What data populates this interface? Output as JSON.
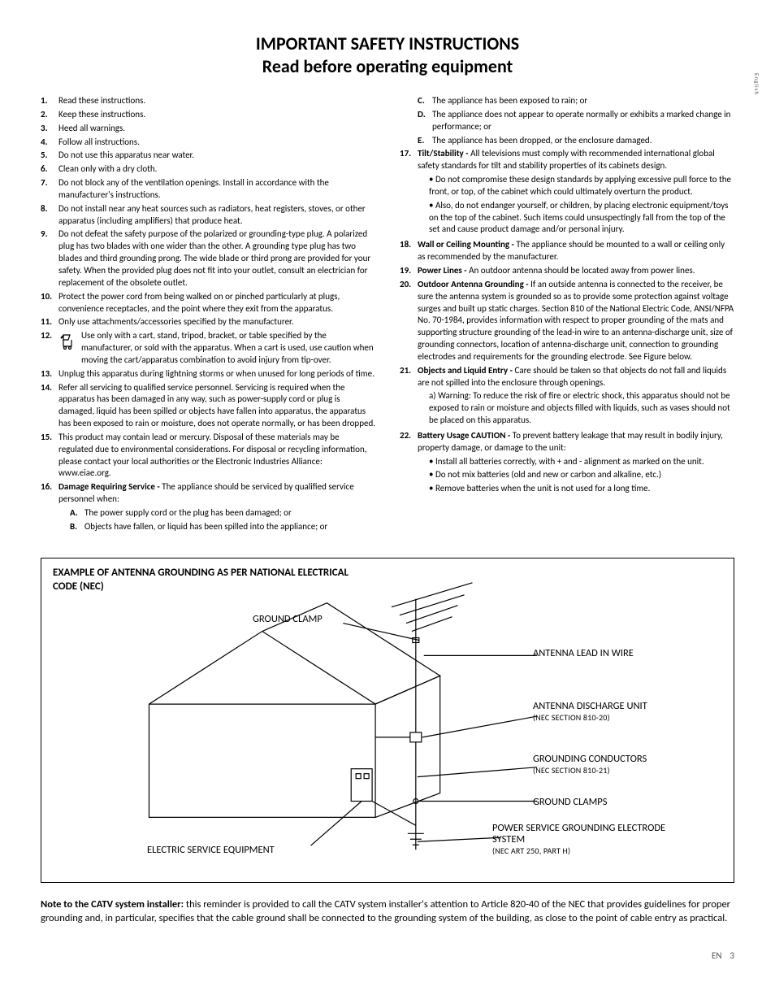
{
  "language_side_label": "English",
  "title_line1": "IMPORTANT SAFETY INSTRUCTIONS",
  "title_line2": "Read before operating equipment",
  "left_items": [
    {
      "n": "1.",
      "text": "Read these instructions."
    },
    {
      "n": "2.",
      "text": "Keep these instructions."
    },
    {
      "n": "3.",
      "text": "Heed all warnings."
    },
    {
      "n": "4.",
      "text": "Follow all instructions."
    },
    {
      "n": "5.",
      "text": "Do not use this apparatus near water."
    },
    {
      "n": "6.",
      "text": "Clean only with a dry cloth."
    },
    {
      "n": "7.",
      "text": "Do not block any of the ventilation openings. Install in accordance with the manufacturer's instructions."
    },
    {
      "n": "8.",
      "text": "Do not install near any heat sources such as radiators, heat registers, stoves, or other apparatus (including amplifiers) that produce heat."
    },
    {
      "n": "9.",
      "text": "Do not defeat the safety purpose of the polarized or grounding-type plug. A polarized plug has two blades with one wider than the other. A grounding type plug has two blades and third grounding prong. The wide blade or third prong are provided for your safety. When the provided plug does not fit into your outlet, consult an electrician for replacement of the obsolete outlet."
    },
    {
      "n": "10.",
      "text": "Protect the power cord from being walked on or pinched particularly at plugs, convenience receptacles, and the point where they exit from the apparatus."
    },
    {
      "n": "11.",
      "text": "Only use attachments/accessories specified by the manufacturer."
    },
    {
      "n": "12.",
      "text": "Use only with a cart, stand, tripod, bracket, or table specified by the manufacturer, or sold with the apparatus. When a cart is used, use caution when moving the cart/apparatus combination to avoid injury from tip-over.",
      "icon": true
    },
    {
      "n": "13.",
      "text": "Unplug this apparatus during lightning storms or when unused for long periods of time."
    },
    {
      "n": "14.",
      "text": "Refer all servicing to qualified service personnel. Servicing is required when the apparatus has been damaged in any way, such as power-supply cord or plug is damaged, liquid has been spilled or objects have fallen into apparatus, the apparatus has been exposed to rain or moisture, does not operate normally, or has been dropped."
    },
    {
      "n": "15.",
      "text": "This product may contain lead or mercury. Disposal of these materials may be regulated due to environmental considerations. For disposal or recycling information, please contact your local authorities or the Electronic Industries Alliance: www.eiae.org."
    },
    {
      "n": "16.",
      "lead": "Damage Requiring Service - ",
      "text": "The appliance should be serviced by qualified service personnel when:",
      "letters": [
        {
          "l": "A.",
          "t": "The power supply cord or the plug has been damaged; or"
        },
        {
          "l": "B.",
          "t": "Objects have fallen, or liquid has been spilled into the appliance; or"
        }
      ]
    }
  ],
  "right_cont_letters": [
    {
      "l": "C.",
      "t": "The appliance has been exposed to rain; or"
    },
    {
      "l": "D.",
      "t": "The appliance does not appear to operate normally or exhibits a marked change in performance; or"
    },
    {
      "l": "E.",
      "t": "The appliance has been dropped, or the enclosure damaged."
    }
  ],
  "right_items": [
    {
      "n": "17.",
      "lead": "Tilt/Stability - ",
      "text": "All televisions must comply with recommended international global safety standards for tilt and stability properties of its cabinets design.",
      "bullets": [
        "Do not compromise these design standards by applying excessive pull force to the front, or top, of the cabinet which could ultimately overturn the product.",
        "Also, do not endanger yourself, or children, by placing electronic equipment/toys on the top of the cabinet. Such items could unsuspectingly fall from the top of the set and cause product damage and/or personal injury."
      ]
    },
    {
      "n": "18.",
      "lead": "Wall or Ceiling Mounting - ",
      "text": "The appliance should be mounted to a wall or ceiling only as recommended by the manufacturer."
    },
    {
      "n": "19.",
      "lead": "Power Lines - ",
      "text": "An outdoor antenna should be located away from power lines."
    },
    {
      "n": "20.",
      "lead": "Outdoor Antenna Grounding - ",
      "text": "If an outside antenna is connected to the receiver, be sure the antenna system is grounded so as to provide some protection against voltage surges and built up static charges. Section 810 of the National Electric Code, ANSI/NFPA No. 70-1984, provides information with respect to proper grounding of the mats and supporting structure grounding of the lead-in wire to an antenna-discharge unit, size of grounding connectors, location of antenna-discharge unit, connection to grounding electrodes and requirements for the grounding electrode. See Figure below."
    },
    {
      "n": "21.",
      "lead": "Objects and Liquid Entry - ",
      "text": "Care should be taken so that objects do not fall and liquids are not spilled into the enclosure through openings.",
      "sub_a": "a) Warning: To reduce the risk of fire or electric shock, this apparatus should not be exposed to rain or moisture and objects filled with liquids, such as vases should not be placed on this apparatus."
    },
    {
      "n": "22.",
      "lead": "Battery Usage CAUTION - ",
      "text": "To prevent battery leakage that may result in bodily injury, property damage, or damage to the unit:",
      "bullets": [
        "Install all batteries correctly, with + and - alignment as marked on the unit.",
        "Do not mix batteries (old and new or carbon and alkaline, etc.)",
        "Remove batteries when the unit is not used for a long time."
      ]
    }
  ],
  "figure": {
    "title": "EXAMPLE OF ANTENNA GROUNDING AS PER NATIONAL ELECTRICAL CODE (NEC)",
    "labels": {
      "ground_clamp_top": "GROUND CLAMP",
      "antenna_lead": "ANTENNA LEAD IN WIRE",
      "discharge_unit": "ANTENNA DISCHARGE UNIT",
      "discharge_unit_sub": "(NEC SECTION 810-20)",
      "grounding_conductors": "GROUNDING CONDUCTORS",
      "grounding_conductors_sub": "(NEC SECTION 810-21)",
      "ground_clamps": "GROUND CLAMPS",
      "power_service": "POWER SERVICE GROUNDING ELECTRODE SYSTEM",
      "power_service_sub": "(NEC ART 250, PART H)",
      "electric_service": "ELECTRIC SERVICE EQUIPMENT"
    }
  },
  "note_lead": "Note to the CATV system installer:",
  "note_text": " this reminder is provided to call the CATV system installer's attention to Article 820-40 of the NEC that provides guidelines for proper grounding and, in particular, specifies that the cable ground shall be connected to the grounding system of the building, as close to the point of cable entry as practical.",
  "footer_lang": "EN",
  "footer_page": "3"
}
